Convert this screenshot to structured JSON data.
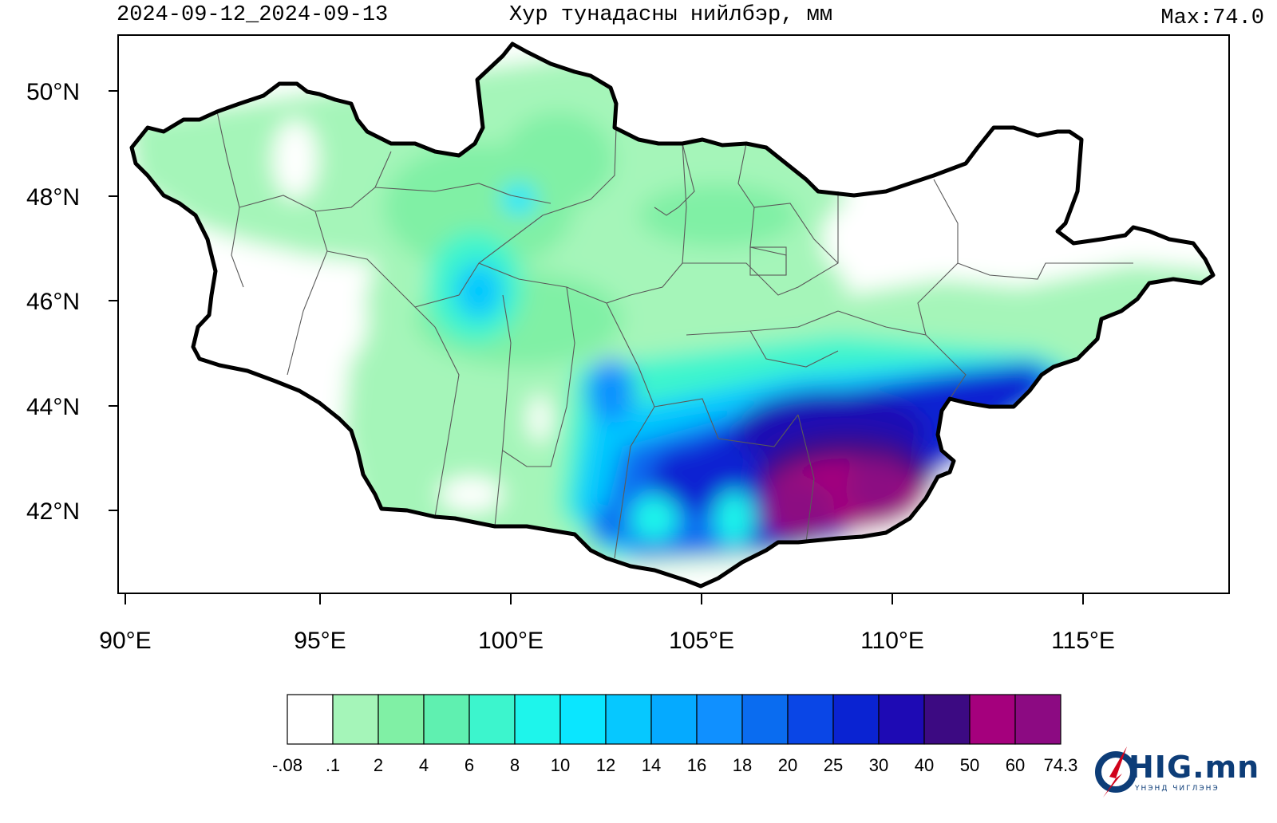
{
  "header": {
    "date_range": "2024-09-12_2024-09-13",
    "title": "Хур тунадасны нийлбэр, мм",
    "max_label": "Max:74.0"
  },
  "map": {
    "lat_labels": [
      "50°N",
      "48°N",
      "46°N",
      "44°N",
      "42°N"
    ],
    "lon_labels": [
      "90°E",
      "95°E",
      "100°E",
      "105°E",
      "110°E",
      "115°E"
    ],
    "region": "Mongolia",
    "color_scale": {
      "colors": [
        "#ffffff",
        "#a5f5b9",
        "#80f0a5",
        "#5ff0b0",
        "#3cf5cd",
        "#1ef5eb",
        "#0ae6ff",
        "#06c8ff",
        "#05aaff",
        "#1090ff",
        "#0a6cf0",
        "#0a46e6",
        "#0a23d2",
        "#1e0ab4",
        "#3c0a82",
        "#a5007d",
        "#8c0a82"
      ],
      "labels": [
        "-.08",
        ".1",
        "2",
        "4",
        "6",
        "8",
        "10",
        "12",
        "14",
        "16",
        "18",
        "20",
        "25",
        "30",
        "40",
        "50",
        "60",
        "74.3"
      ]
    }
  },
  "logo": {
    "text": "HIG.mn",
    "sub": "ҮНЭНД ЧИГЛЭНЭ"
  }
}
